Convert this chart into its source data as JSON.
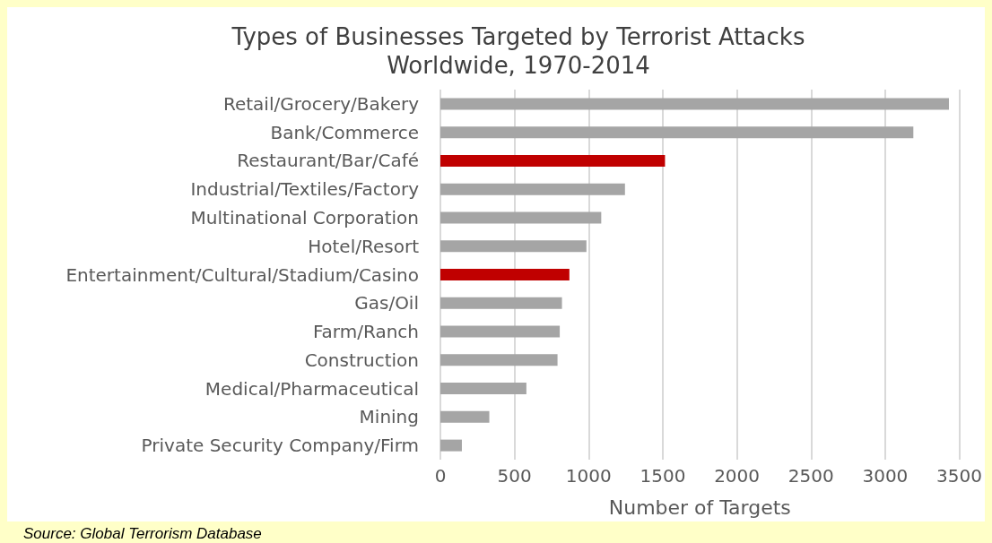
{
  "chart_data": {
    "type": "bar",
    "orientation": "horizontal",
    "title": "Types of Businesses Targeted by Terrorist Attacks\nWorldwide, 1970-2014",
    "xlabel": "Number of Targets",
    "categories": [
      "Retail/Grocery/Bakery",
      "Bank/Commerce",
      "Restaurant/Bar/Café",
      "Industrial/Textiles/Factory",
      "Multinational Corporation",
      "Hotel/Resort",
      "Entertainment/Cultural/Stadium/Casino",
      "Gas/Oil",
      "Farm/Ranch",
      "Construction",
      "Medical/Pharmaceutical",
      "Mining",
      "Private Security Company/Firm"
    ],
    "values": [
      3430,
      3190,
      1515,
      1245,
      1085,
      985,
      870,
      820,
      805,
      790,
      580,
      330,
      145
    ],
    "colors": [
      "#a5a5a5",
      "#a5a5a5",
      "#c00000",
      "#a5a5a5",
      "#a5a5a5",
      "#a5a5a5",
      "#c00000",
      "#a5a5a5",
      "#a5a5a5",
      "#a5a5a5",
      "#a5a5a5",
      "#a5a5a5",
      "#a5a5a5"
    ],
    "xlim": [
      0,
      3500
    ],
    "xticks": [
      0,
      500,
      1000,
      1500,
      2000,
      2500,
      3000,
      3500
    ],
    "grid": "x",
    "annotations": [
      "Source: Global Terrorism Database"
    ]
  }
}
